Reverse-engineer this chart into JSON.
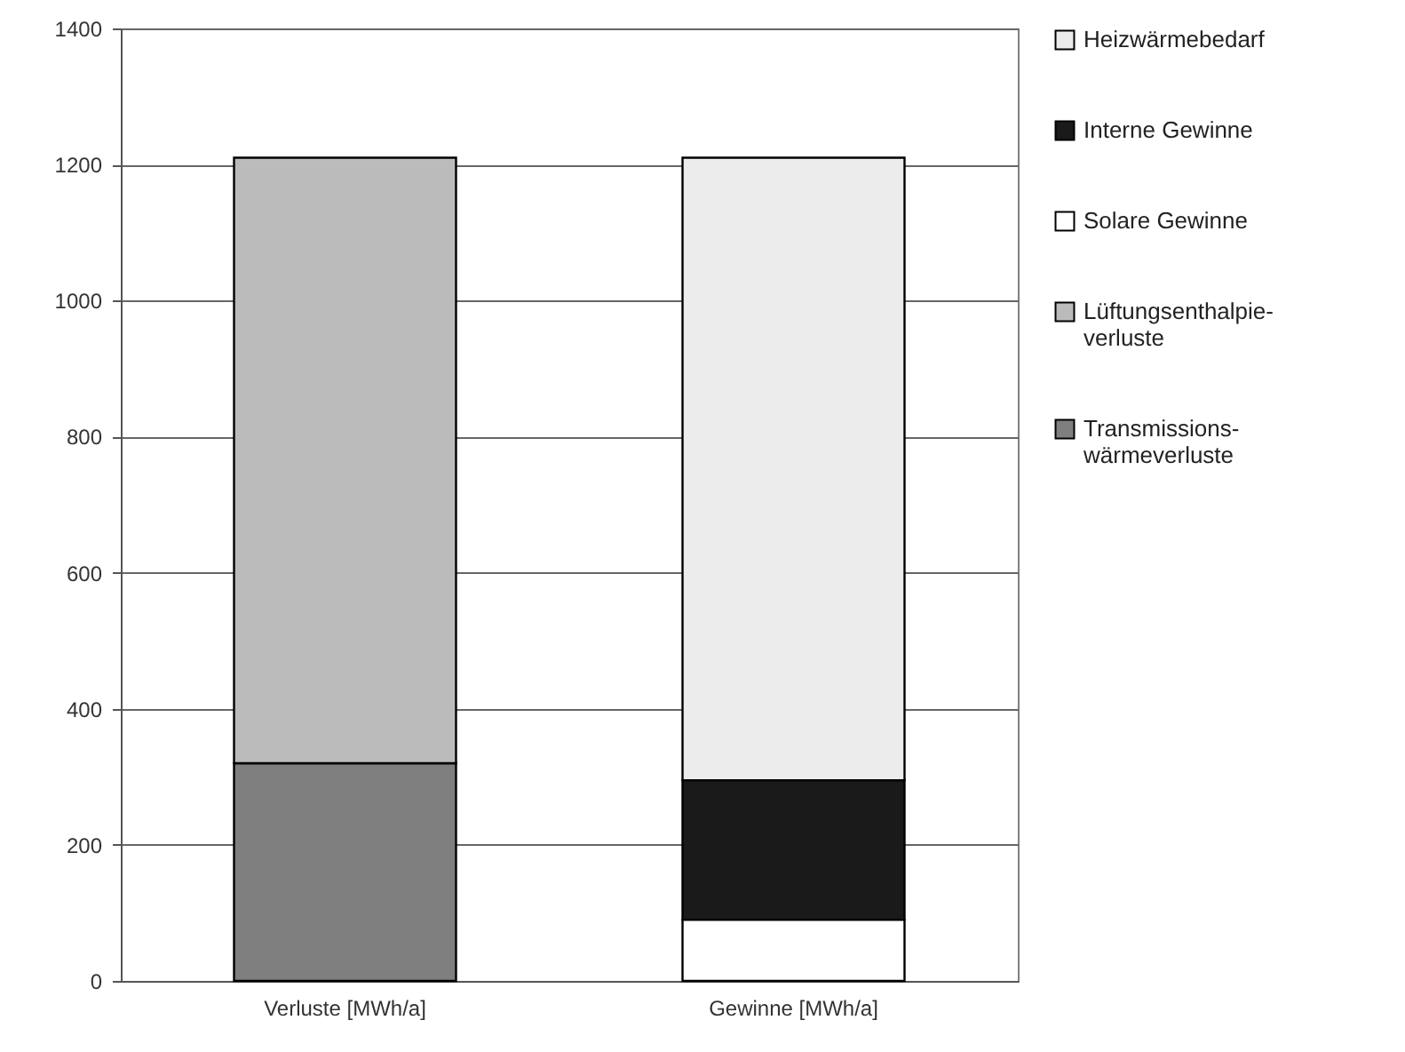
{
  "chart_data": {
    "type": "bar",
    "stacked": true,
    "categories": [
      "Verluste [MWh/a]",
      "Gewinne [MWh/a]"
    ],
    "series": [
      {
        "name": "Transmissions-wärmeverluste",
        "color": "#7f7f7f",
        "values": [
          320,
          null
        ]
      },
      {
        "name": "Lüftungsenthalpie-verluste",
        "color": "#bbbbbb",
        "values": [
          890,
          null
        ]
      },
      {
        "name": "Solare Gewinne",
        "color": "#ffffff",
        "values": [
          null,
          90
        ]
      },
      {
        "name": "Interne Gewinne",
        "color": "#1a1a1a",
        "values": [
          null,
          205
        ]
      },
      {
        "name": "Heizwärmebedarf",
        "color": "#ececec",
        "values": [
          null,
          915
        ]
      }
    ],
    "ylim": [
      0,
      1400
    ],
    "yticks": [
      0,
      200,
      400,
      600,
      800,
      1000,
      1200,
      1400
    ],
    "grid": "y",
    "legend": "right"
  }
}
